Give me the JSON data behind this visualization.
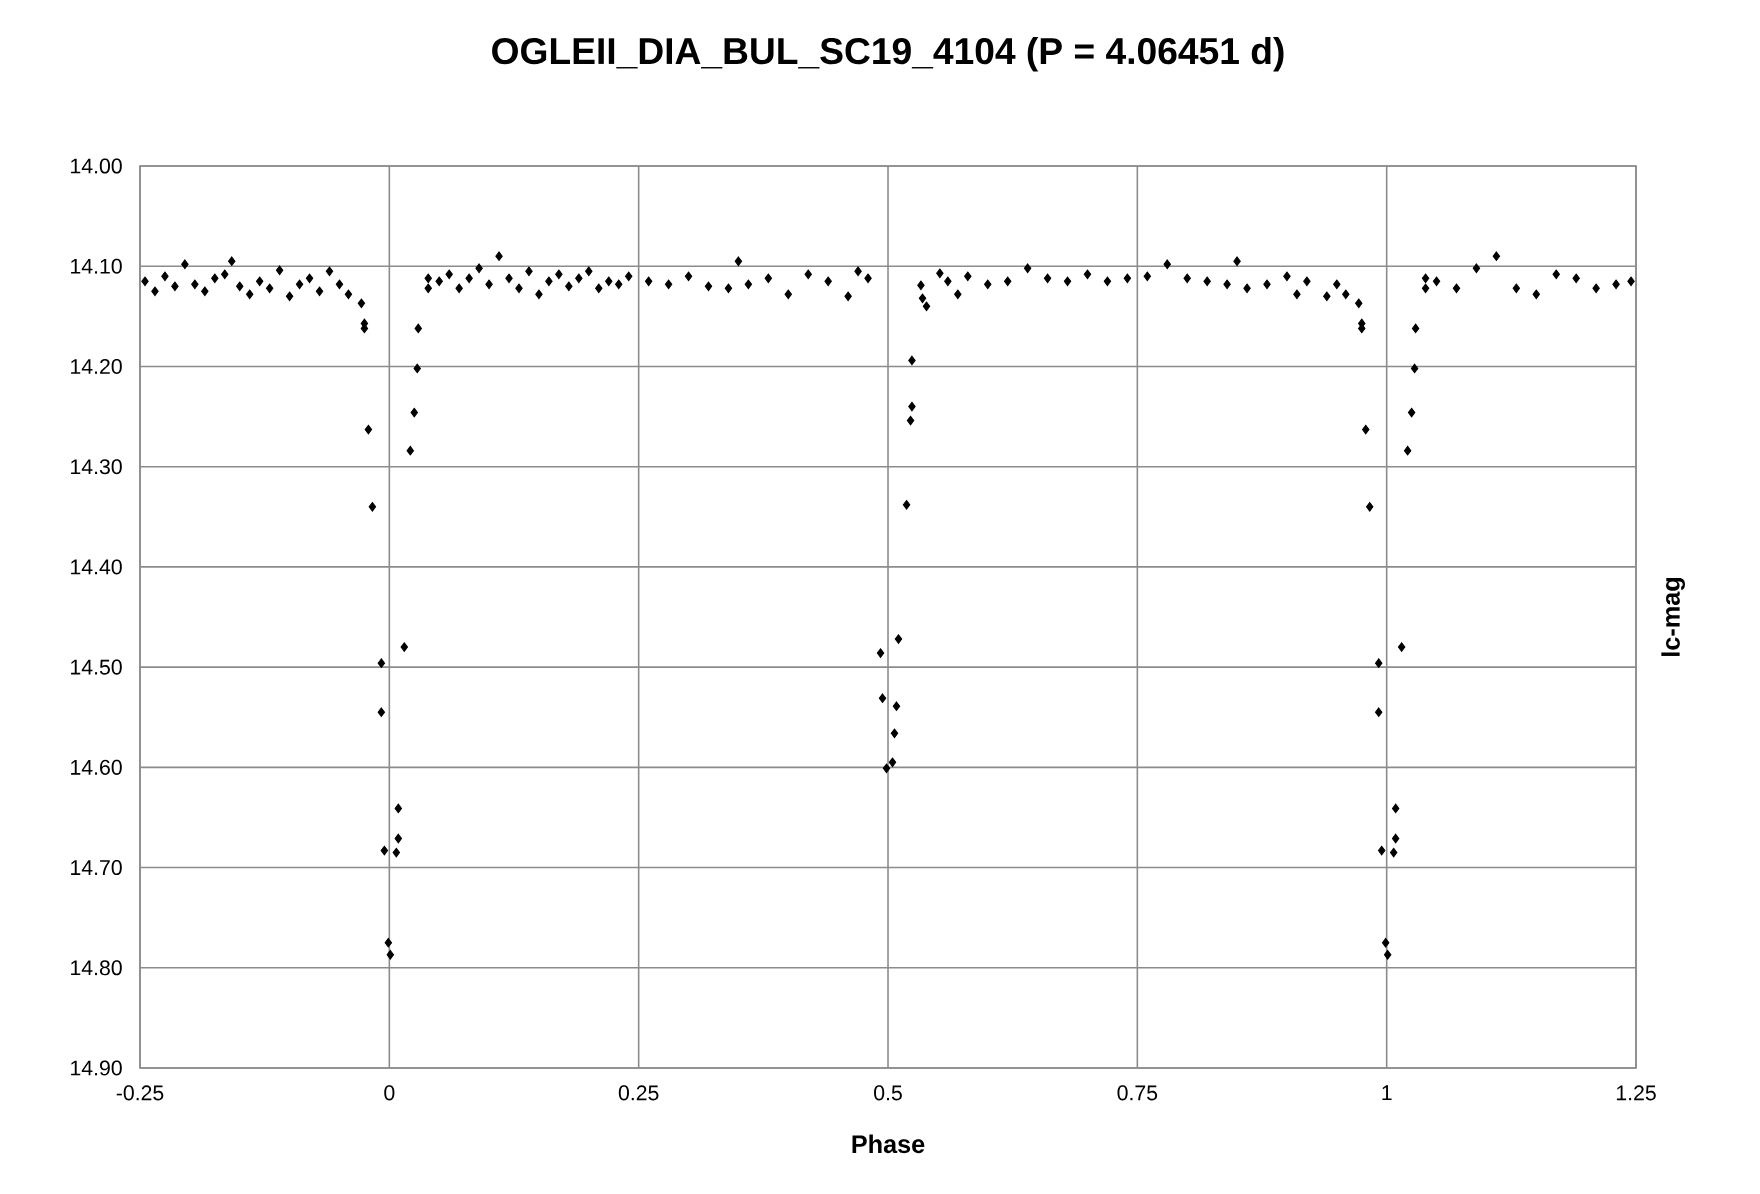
{
  "chart_data": {
    "type": "scatter",
    "title": "OGLEII_DIA_BUL_SC19_4104 (P = 4.06451 d)",
    "xlabel": "Phase",
    "ylabel": "lc-mag",
    "xlim": [
      -0.25,
      1.25
    ],
    "xticks": [
      -0.25,
      0,
      0.25,
      0.5,
      0.75,
      1,
      1.25
    ],
    "ylim": [
      14.9,
      14.0
    ],
    "yticks": [
      {
        "value": 14.0,
        "label": "14.00"
      },
      {
        "value": 14.1,
        "label": "14.10"
      },
      {
        "value": 14.2,
        "label": "14.20"
      },
      {
        "value": 14.3,
        "label": "14.30"
      },
      {
        "value": 14.4,
        "label": "14.40"
      },
      {
        "value": 14.5,
        "label": "14.50"
      },
      {
        "value": 14.6,
        "label": "14.60"
      },
      {
        "value": 14.7,
        "label": "14.70"
      },
      {
        "value": 14.8,
        "label": "14.80"
      },
      {
        "value": 14.9,
        "label": "14.90"
      }
    ],
    "grid": true,
    "marker": "diamond",
    "series": [
      {
        "color": "#000000",
        "x": [
          -0.245,
          -0.235,
          -0.225,
          -0.215,
          -0.205,
          -0.195,
          -0.185,
          -0.175,
          -0.165,
          -0.158,
          -0.15,
          -0.14,
          -0.13,
          -0.12,
          -0.11,
          -0.1,
          -0.09,
          -0.08,
          -0.07,
          -0.06,
          -0.05,
          -0.041,
          -0.028,
          -0.025,
          -0.025,
          -0.021,
          -0.017,
          -0.008,
          -0.008,
          -0.005,
          -0.001,
          0.001,
          0.007,
          0.009,
          0.009,
          0.015,
          0.021,
          0.025,
          0.028,
          0.029,
          0.039,
          0.039,
          0.05,
          0.06,
          0.07,
          0.08,
          0.09,
          0.1,
          0.11,
          0.12,
          0.13,
          0.14,
          0.15,
          0.16,
          0.17,
          0.18,
          0.19,
          0.2,
          0.21,
          0.22,
          0.23,
          0.24,
          0.26,
          0.28,
          0.3,
          0.32,
          0.34,
          0.35,
          0.36,
          0.38,
          0.4,
          0.42,
          0.44,
          0.46,
          0.47,
          0.48,
          0.4925,
          0.4945,
          0.4985,
          0.5045,
          0.5065,
          0.5085,
          0.5105,
          0.5186,
          0.5226,
          0.524,
          0.524,
          0.533,
          0.5346,
          0.5386,
          0.552,
          0.56,
          0.57,
          0.58,
          0.6,
          0.62,
          0.64,
          0.66,
          0.68,
          0.7,
          0.72,
          0.74,
          0.76,
          0.78,
          0.8,
          0.82,
          0.84,
          0.85,
          0.86,
          0.88,
          0.9,
          0.91,
          0.92,
          0.94,
          0.95,
          0.959,
          0.972,
          0.975,
          0.975,
          0.979,
          0.983,
          0.992,
          0.992,
          0.995,
          0.999,
          1.001,
          1.007,
          1.009,
          1.009,
          1.015,
          1.021,
          1.025,
          1.028,
          1.029,
          1.039,
          1.039,
          1.05,
          1.07,
          1.09,
          1.11,
          1.13,
          1.15,
          1.17,
          1.19,
          1.21,
          1.23,
          1.245
        ],
        "values": [
          14.115,
          14.125,
          14.11,
          14.12,
          14.098,
          14.118,
          14.125,
          14.112,
          14.108,
          14.095,
          14.12,
          14.128,
          14.115,
          14.122,
          14.104,
          14.13,
          14.118,
          14.112,
          14.125,
          14.105,
          14.118,
          14.128,
          14.137,
          14.157,
          14.162,
          14.263,
          14.34,
          14.496,
          14.545,
          14.683,
          14.775,
          14.787,
          14.685,
          14.641,
          14.671,
          14.48,
          14.284,
          14.246,
          14.202,
          14.162,
          14.112,
          14.122,
          14.115,
          14.108,
          14.122,
          14.112,
          14.102,
          14.118,
          14.09,
          14.112,
          14.122,
          14.105,
          14.128,
          14.115,
          14.108,
          14.12,
          14.112,
          14.105,
          14.122,
          14.115,
          14.118,
          14.11,
          14.115,
          14.118,
          14.11,
          14.12,
          14.122,
          14.095,
          14.118,
          14.112,
          14.128,
          14.108,
          14.115,
          14.13,
          14.105,
          14.112,
          14.486,
          14.531,
          14.601,
          14.595,
          14.566,
          14.539,
          14.472,
          14.338,
          14.254,
          14.194,
          14.24,
          14.119,
          14.132,
          14.14,
          14.107,
          14.115,
          14.128,
          14.11,
          14.118,
          14.115,
          14.102,
          14.112,
          14.115,
          14.108,
          14.115,
          14.112,
          14.11,
          14.098,
          14.112,
          14.115,
          14.118,
          14.095,
          14.122,
          14.118,
          14.11,
          14.128,
          14.115,
          14.13,
          14.118,
          14.128,
          14.137,
          14.157,
          14.162,
          14.263,
          14.34,
          14.496,
          14.545,
          14.683,
          14.775,
          14.787,
          14.685,
          14.641,
          14.671,
          14.48,
          14.284,
          14.246,
          14.202,
          14.162,
          14.112,
          14.122,
          14.115,
          14.122,
          14.102,
          14.09,
          14.122,
          14.128,
          14.108,
          14.112,
          14.122,
          14.118,
          14.115
        ]
      }
    ]
  }
}
